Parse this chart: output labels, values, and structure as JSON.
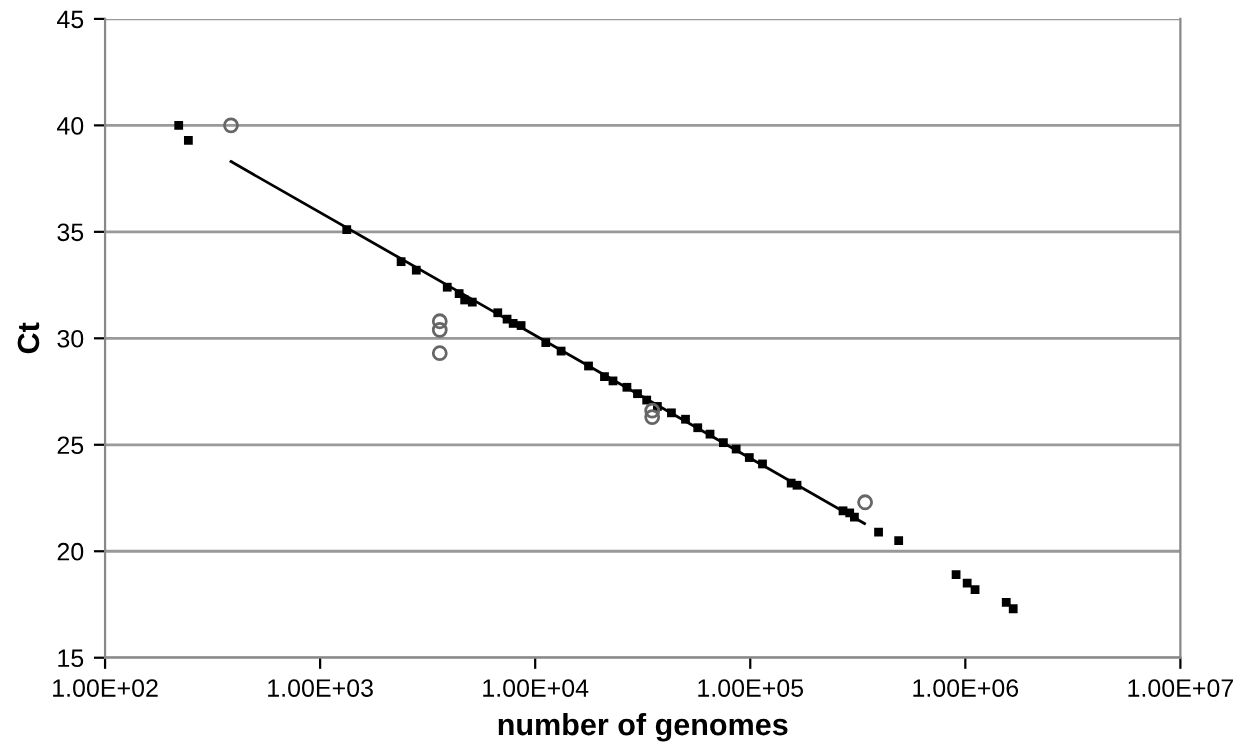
{
  "chart_data": {
    "type": "scatter",
    "xlabel": "number of genomes",
    "ylabel": "Ct",
    "log": "x",
    "grid": "y",
    "legend": false,
    "xlim": [
      100,
      10000000
    ],
    "ylim": [
      15,
      45
    ],
    "xticks": [
      {
        "value": 100,
        "label": "1.00E+02"
      },
      {
        "value": 1000,
        "label": "1.00E+03"
      },
      {
        "value": 10000,
        "label": "1.00E+04"
      },
      {
        "value": 100000,
        "label": "1.00E+05"
      },
      {
        "value": 1000000,
        "label": "1.00E+06"
      },
      {
        "value": 10000000,
        "label": "1.00E+07"
      }
    ],
    "yticks": [
      15,
      20,
      25,
      30,
      35,
      40,
      45
    ],
    "series": [
      {
        "marker": "square",
        "color": "#000000",
        "x": [
          220,
          244,
          1330,
          2380,
          2800,
          3900,
          4430,
          4700,
          5100,
          6700,
          7400,
          7900,
          8600,
          11200,
          13200,
          17700,
          21000,
          23000,
          26700,
          29900,
          33000,
          37000,
          43000,
          50000,
          57000,
          65000,
          75000,
          86000,
          99000,
          114000,
          155000,
          165000,
          270000,
          290000,
          305000,
          395000,
          490000,
          906000,
          1020000,
          1110000,
          1550000,
          1670000
        ],
        "values": [
          40,
          39.3,
          35.1,
          33.6,
          33.2,
          32.4,
          32.1,
          31.8,
          31.7,
          31.2,
          30.9,
          30.7,
          30.6,
          29.8,
          29.4,
          28.7,
          28.2,
          28.0,
          27.7,
          27.4,
          27.1,
          26.8,
          26.5,
          26.2,
          25.8,
          25.5,
          25.1,
          24.8,
          24.4,
          24.1,
          23.2,
          23.1,
          21.9,
          21.8,
          21.6,
          20.9,
          20.5,
          18.9,
          18.5,
          18.2,
          17.6,
          17.3
        ]
      },
      {
        "marker": "circle",
        "color": "#666666",
        "x": [
          385,
          3600,
          3600,
          3600,
          35000,
          35000,
          342000
        ],
        "values": [
          40,
          30.8,
          30.4,
          29.3,
          26.6,
          26.3,
          22.3
        ]
      },
      {
        "type": "line",
        "marker": "none",
        "line_style": "solid",
        "color": "#000000",
        "x": [
          385,
          340000
        ],
        "values": [
          38.3,
          21.3
        ]
      }
    ]
  }
}
